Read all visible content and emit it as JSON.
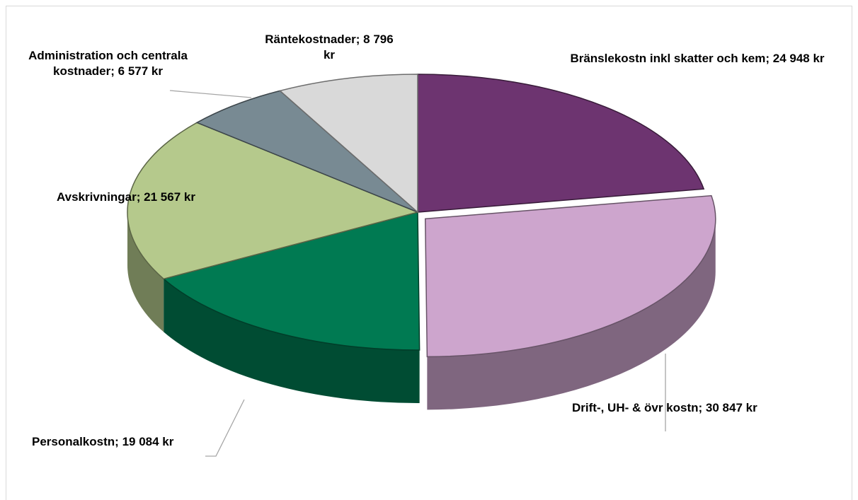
{
  "chart_data": {
    "type": "pie",
    "categories": [
      "Bränslekostn inkl skatter och kem",
      "Drift-, UH- & övr kostn",
      "Personalkostn",
      "Avskrivningar",
      "Administration och centrala kostnader",
      "Räntekostnader"
    ],
    "values": [
      24948,
      30847,
      19084,
      21567,
      6577,
      8796
    ],
    "value_labels": [
      "24 948 kr",
      "30 847 kr",
      "19 084 kr",
      "21 567 kr",
      "6 577 kr",
      "8 796 kr"
    ],
    "label_separator": ";",
    "colors": [
      "#6d3470",
      "#cda5cd",
      "#007a52",
      "#b5c98c",
      "#788a93",
      "#d9d9d9"
    ],
    "exploded": [
      1
    ]
  }
}
